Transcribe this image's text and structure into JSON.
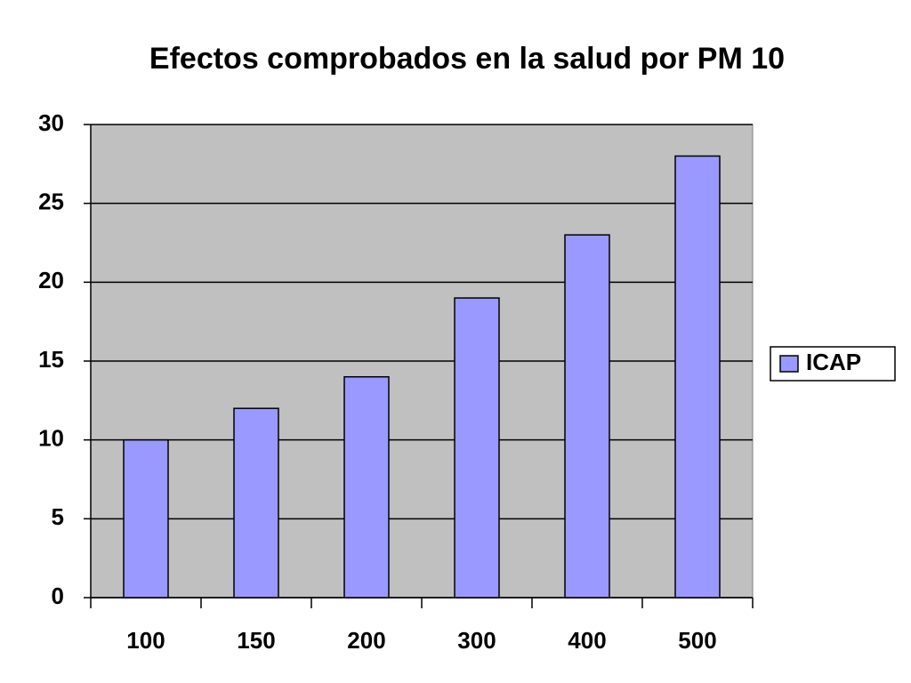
{
  "chart_data": {
    "type": "bar",
    "title": "Efectos comprobados en la salud por PM 10",
    "categories": [
      "100",
      "150",
      "200",
      "300",
      "400",
      "500"
    ],
    "series": [
      {
        "name": "ICAP",
        "color": "#9999ff",
        "values": [
          10,
          12,
          14,
          19,
          23,
          28
        ]
      }
    ],
    "ylim": [
      0,
      30
    ],
    "yticks": [
      0,
      5,
      10,
      15,
      20,
      25,
      30
    ],
    "grid": true,
    "legend": "right"
  }
}
